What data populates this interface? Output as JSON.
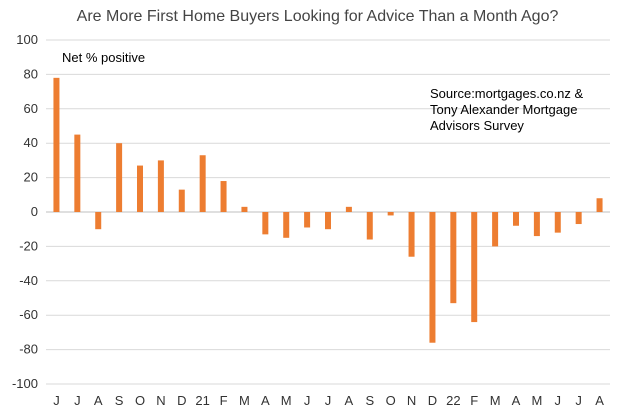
{
  "chart_data": {
    "type": "bar",
    "title": "Are More First Home Buyers Looking for Advice Than a Month Ago?",
    "xlabel": "",
    "ylabel": "",
    "ylim": [
      -100,
      100
    ],
    "yticks": [
      -100,
      -80,
      -60,
      -40,
      -20,
      0,
      20,
      40,
      60,
      80,
      100
    ],
    "grid": true,
    "bar_color": "#ED7D31",
    "annotations": {
      "series_label": "Net % positive",
      "source": "Source:mortgages.co.nz &\nTony Alexander Mortgage\nAdvisors Survey"
    },
    "tick_labels": [
      "J",
      "J",
      "A",
      "S",
      "O",
      "N",
      "D",
      "21",
      "F",
      "M",
      "A",
      "M",
      "J",
      "J",
      "A",
      "S",
      "O",
      "N",
      "D",
      "22",
      "F",
      "M",
      "A",
      "M",
      "J",
      "J",
      "A"
    ],
    "values": [
      78,
      45,
      -10,
      40,
      27,
      30,
      13,
      33,
      18,
      3,
      -13,
      -15,
      -9,
      -10,
      3,
      -16,
      -2,
      -26,
      -76,
      -53,
      -64,
      -20,
      -8,
      -14,
      -12,
      -7,
      8
    ]
  }
}
